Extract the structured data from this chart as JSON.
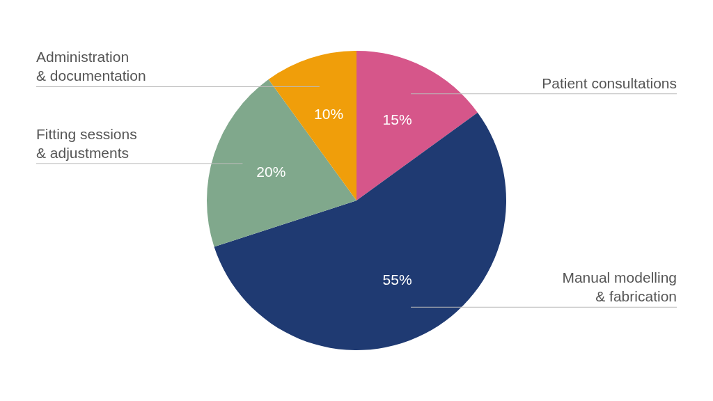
{
  "chart_data": {
    "type": "pie",
    "categories": [
      "Patient consultations",
      "Manual modelling\n& fabrication",
      "Fitting sessions\n& adjustments",
      "Administration\n& documentation"
    ],
    "values": [
      15,
      55,
      20,
      10
    ],
    "value_labels": [
      "15%",
      "55%",
      "20%",
      "10%"
    ],
    "colors": [
      "#d6568a",
      "#1f3a72",
      "#80a88c",
      "#f09e0a"
    ],
    "legend": false
  }
}
